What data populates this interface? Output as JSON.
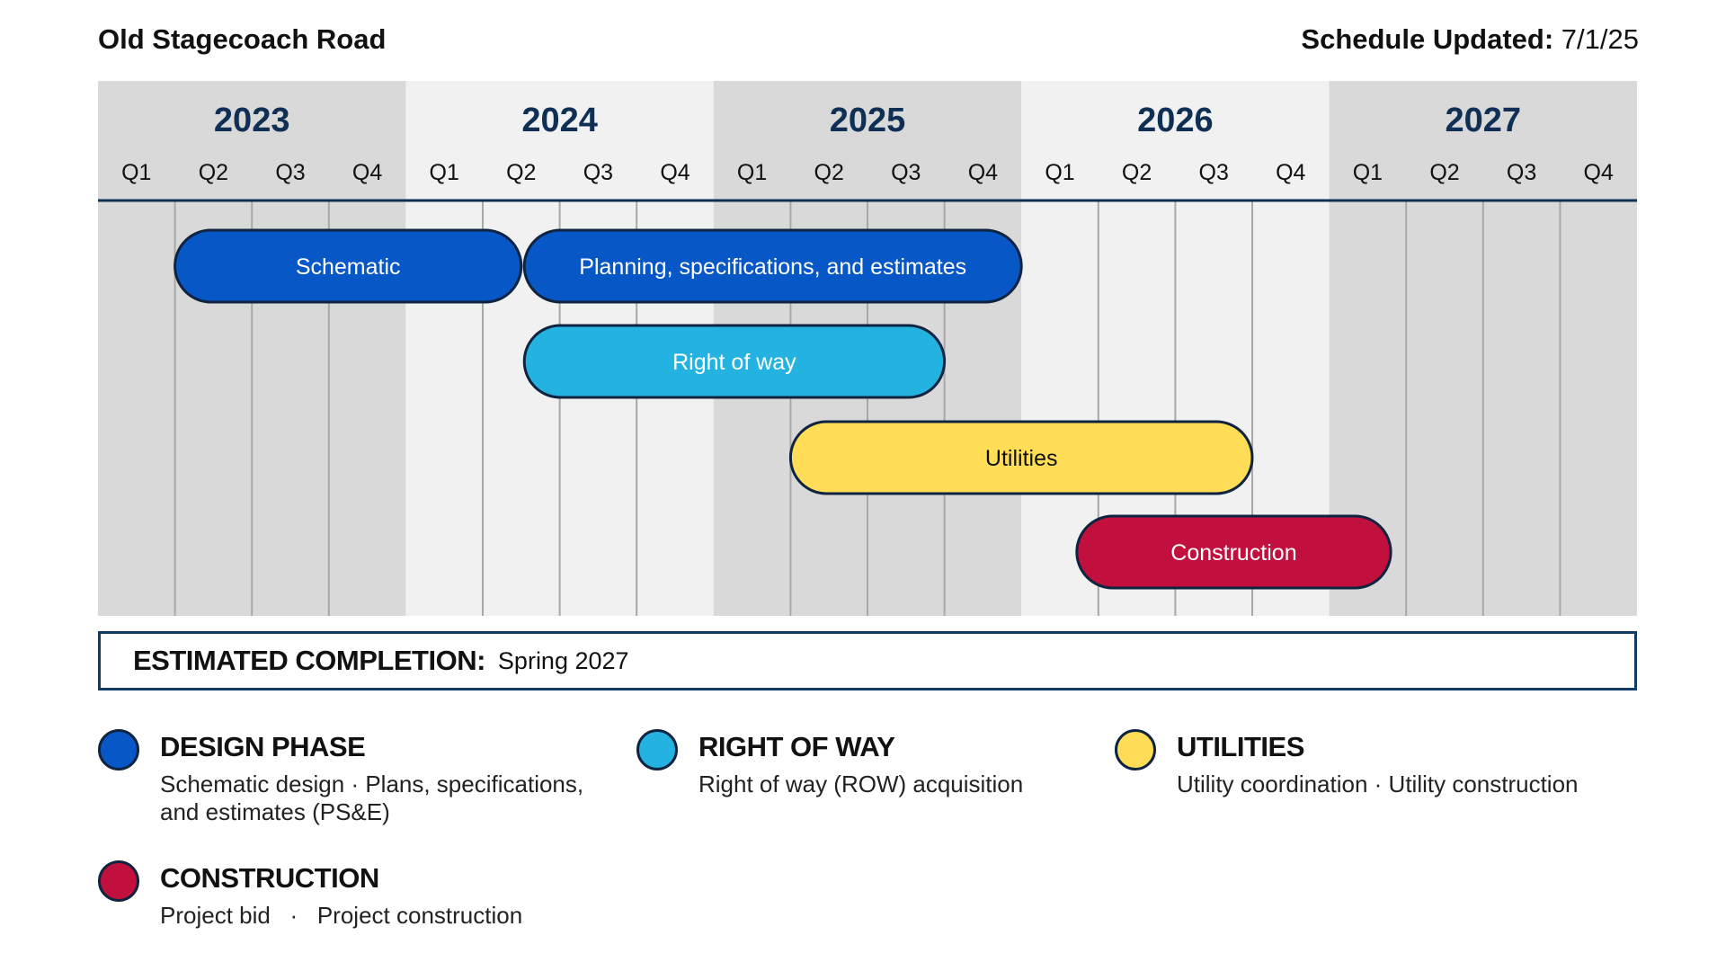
{
  "header": {
    "project_title": "Old Stagecoach Road",
    "updated_label": "Schedule Updated:",
    "updated_value": "7/1/25"
  },
  "colors": {
    "design": "#0757c6",
    "right_of_way": "#24b2e0",
    "utilities": "#ffdd57",
    "construction": "#c2103e",
    "navy": "#0f2f55",
    "band_dark": "#d9d9d9",
    "band_light": "#f1f1f1"
  },
  "chart_data": {
    "type": "gantt",
    "years": [
      "2023",
      "2024",
      "2025",
      "2026",
      "2027"
    ],
    "quarters": [
      "Q1",
      "Q2",
      "Q3",
      "Q4"
    ],
    "tasks": [
      {
        "name": "Schematic",
        "row": 0,
        "start": 2023.25,
        "end": 2024.375,
        "category": "design"
      },
      {
        "name": "Planning, specifications, and estimates",
        "row": 0,
        "start": 2024.385,
        "end": 2026.0,
        "category": "design"
      },
      {
        "name": "Right of way",
        "row": 1,
        "start": 2024.385,
        "end": 2025.75,
        "category": "right_of_way"
      },
      {
        "name": "Utilities",
        "row": 2,
        "start": 2025.25,
        "end": 2026.75,
        "category": "utilities"
      },
      {
        "name": "Construction",
        "row": 3,
        "start": 2026.18,
        "end": 2027.2,
        "category": "construction"
      }
    ]
  },
  "completion": {
    "label": "ESTIMATED COMPLETION:",
    "value": "Spring 2027"
  },
  "legend": {
    "design": {
      "title": "DESIGN PHASE",
      "desc": "Schematic design   ·   Plans, specifications,  and estimates (PS&E)"
    },
    "right_of_way": {
      "title": "RIGHT OF WAY",
      "desc": "Right of way (ROW) acquisition"
    },
    "utilities": {
      "title": "UTILITIES",
      "desc": "Utility coordination · Utility construction"
    },
    "construction": {
      "title": "CONSTRUCTION",
      "desc": "Project bid   ·   Project construction"
    }
  }
}
